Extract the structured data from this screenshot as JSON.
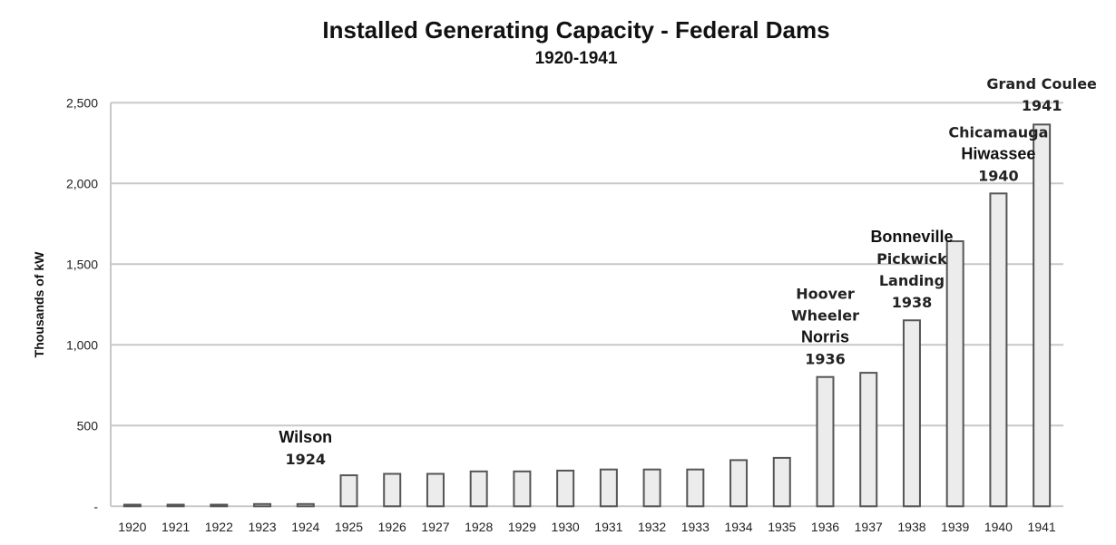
{
  "chart_data": {
    "type": "bar",
    "title": "Installed Generating Capacity - Federal Dams",
    "subtitle": "1920-1941",
    "xlabel": "",
    "ylabel": "Thousands of kW",
    "ylim": [
      0,
      2500
    ],
    "yticks": [
      0,
      500,
      1000,
      1500,
      2000,
      2500
    ],
    "ytick_labels": [
      "-",
      "500",
      "1,000",
      "1,500",
      "2,000",
      "2,500"
    ],
    "grid": true,
    "categories": [
      "1920",
      "1921",
      "1922",
      "1923",
      "1924",
      "1925",
      "1926",
      "1927",
      "1928",
      "1929",
      "1930",
      "1931",
      "1932",
      "1933",
      "1934",
      "1935",
      "1936",
      "1937",
      "1938",
      "1939",
      "1940",
      "1941"
    ],
    "values": [
      10,
      10,
      10,
      14,
      14,
      192,
      201,
      201,
      216,
      216,
      221,
      228,
      228,
      228,
      286,
      300,
      801,
      827,
      1152,
      1642,
      1938,
      2365
    ],
    "colors": {
      "bar_fill": "#ececec",
      "bar_stroke": "#555555",
      "grid": "#c8c8c8"
    },
    "annotations": [
      {
        "category": "1924",
        "lines": [
          {
            "text": "Wilson",
            "big": true
          },
          {
            "text": "1924",
            "big": false
          }
        ]
      },
      {
        "category": "1936",
        "lines": [
          {
            "text": "Hoover",
            "big": false
          },
          {
            "text": "Wheeler",
            "big": false
          },
          {
            "text": "Norris",
            "big": true
          },
          {
            "text": "1936",
            "big": false
          }
        ]
      },
      {
        "category": "1938",
        "lines": [
          {
            "text": "Bonneville",
            "big": true
          },
          {
            "text": "Pickwick",
            "big": false
          },
          {
            "text": "Landing",
            "big": false
          },
          {
            "text": "1938",
            "big": false
          }
        ]
      },
      {
        "category": "1940",
        "lines": [
          {
            "text": "Chicamauga",
            "big": false
          },
          {
            "text": "Hiwassee",
            "big": true
          },
          {
            "text": "1940",
            "big": false
          }
        ]
      },
      {
        "category": "1941",
        "lines": [
          {
            "text": "Grand Coulee",
            "big": false
          },
          {
            "text": "1941",
            "big": false
          }
        ]
      }
    ]
  }
}
